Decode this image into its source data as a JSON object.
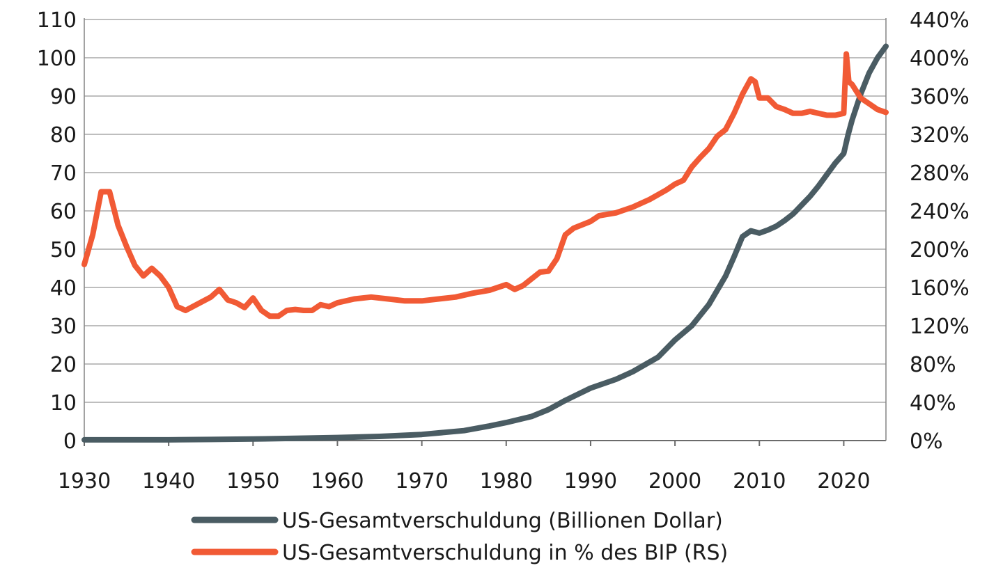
{
  "chart_data": {
    "type": "line",
    "xlim": [
      1930,
      2025
    ],
    "x_ticks": [
      1930,
      1940,
      1950,
      1960,
      1970,
      1980,
      1990,
      2000,
      2010,
      2020
    ],
    "left_axis": {
      "ylim": [
        0,
        110
      ],
      "ticks": [
        "0",
        "10",
        "20",
        "30",
        "40",
        "50",
        "60",
        "70",
        "80",
        "90",
        "100",
        "110"
      ]
    },
    "right_axis": {
      "ylim": [
        0,
        440
      ],
      "ticks": [
        "0%",
        "40%",
        "80%",
        "120%",
        "160%",
        "200%",
        "240%",
        "280%",
        "320%",
        "360%",
        "400%",
        "440%"
      ]
    },
    "grid": "horizontal",
    "legend_position": "bottom",
    "series": [
      {
        "name": "US-Gesamtverschuldung (Billionen Dollar)",
        "axis": "left",
        "color": "#4a5c63",
        "x": [
          1930,
          1935,
          1940,
          1945,
          1950,
          1955,
          1960,
          1965,
          1970,
          1975,
          1978,
          1980,
          1983,
          1985,
          1987,
          1990,
          1993,
          1995,
          1998,
          2000,
          2002,
          2004,
          2006,
          2007,
          2008,
          2009,
          2010,
          2011,
          2012,
          2013,
          2014,
          2015,
          2016,
          2017,
          2018,
          2019,
          2020,
          2020.5,
          2021,
          2022,
          2023,
          2024,
          2025
        ],
        "y": [
          0.2,
          0.2,
          0.2,
          0.3,
          0.4,
          0.6,
          0.8,
          1.1,
          1.6,
          2.6,
          3.8,
          4.7,
          6.3,
          8.1,
          10.5,
          13.7,
          16.0,
          18.0,
          21.8,
          26.3,
          30.0,
          35.5,
          43.0,
          48.0,
          53.3,
          54.8,
          54.2,
          55.0,
          56.0,
          57.5,
          59.2,
          61.5,
          63.8,
          66.5,
          69.5,
          72.5,
          75.0,
          79.8,
          83.8,
          90.5,
          96.0,
          100.0,
          103.0
        ]
      },
      {
        "name": "US-Gesamtverschuldung in % des BIP (RS)",
        "axis": "right",
        "color": "#f15a35",
        "x": [
          1930,
          1931,
          1932,
          1933,
          1934,
          1935,
          1936,
          1937,
          1938,
          1939,
          1940,
          1941,
          1942,
          1945,
          1946,
          1947,
          1948,
          1949,
          1950,
          1951,
          1952,
          1953,
          1954,
          1955,
          1956,
          1957,
          1958,
          1959,
          1960,
          1962,
          1964,
          1966,
          1968,
          1970,
          1972,
          1974,
          1976,
          1978,
          1980,
          1981,
          1982,
          1984,
          1985,
          1986,
          1987,
          1988,
          1990,
          1991,
          1993,
          1995,
          1997,
          1999,
          2000,
          2001,
          2002,
          2003,
          2004,
          2005,
          2006,
          2007,
          2008,
          2009,
          2009.5,
          2010,
          2011,
          2012,
          2013,
          2014,
          2015,
          2016,
          2017,
          2018,
          2019,
          2020,
          2020.3,
          2020.6,
          2021,
          2022,
          2023,
          2024,
          2025
        ],
        "y": [
          184,
          215,
          260,
          260,
          225,
          203,
          183,
          172,
          180,
          172,
          160,
          140,
          136,
          150,
          158,
          147,
          144,
          139,
          149,
          136,
          130,
          130,
          136,
          137,
          136,
          136,
          142,
          140,
          144,
          148,
          150,
          148,
          146,
          146,
          148,
          150,
          154,
          157,
          163,
          158,
          162,
          176,
          177,
          190,
          215,
          222,
          229,
          235,
          238,
          244,
          252,
          262,
          268,
          272,
          286,
          296,
          305,
          318,
          325,
          342,
          362,
          378,
          375,
          358,
          358,
          349,
          346,
          342,
          342,
          344,
          342,
          340,
          340,
          342,
          404,
          375,
          372,
          358,
          352,
          346,
          343
        ]
      }
    ]
  }
}
